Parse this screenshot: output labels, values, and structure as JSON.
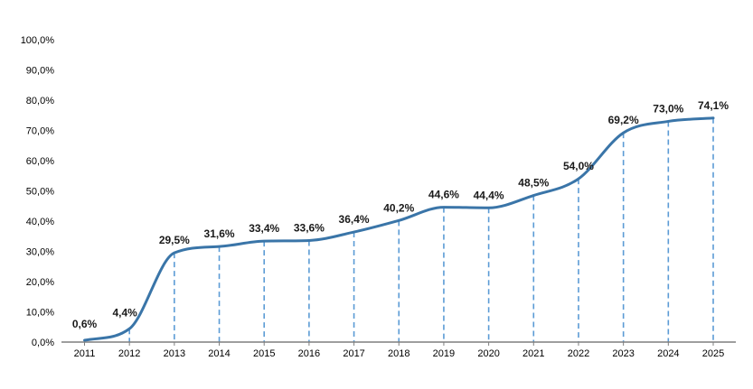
{
  "chart_data": {
    "type": "line",
    "categories": [
      "2011",
      "2012",
      "2013",
      "2014",
      "2015",
      "2016",
      "2017",
      "2018",
      "2019",
      "2020",
      "2021",
      "2022",
      "2023",
      "2024",
      "2025"
    ],
    "series": [
      {
        "values": [
          0.6,
          4.4,
          29.5,
          31.6,
          33.4,
          33.6,
          36.4,
          40.2,
          44.6,
          44.4,
          48.5,
          54.0,
          69.2,
          73.0,
          74.1
        ]
      }
    ],
    "data_labels": [
      "0,6%",
      "4,4%",
      "29,5%",
      "31,6%",
      "33,4%",
      "33,6%",
      "36,4%",
      "40,2%",
      "44,6%",
      "44,4%",
      "48,5%",
      "54,0%",
      "69,2%",
      "73,0%",
      "74,1%"
    ],
    "y_ticks": [
      "0,0%",
      "10,0%",
      "20,0%",
      "30,0%",
      "40,0%",
      "50,0%",
      "60,0%",
      "70,0%",
      "80,0%",
      "90,0%",
      "100,0%"
    ],
    "ylim": [
      0,
      100
    ],
    "grid": false,
    "drop_lines": true,
    "smooth": true,
    "line_color": "#3a75a8",
    "drop_line_color": "#5b9bd5",
    "axis_color": "#7f7f7f"
  }
}
